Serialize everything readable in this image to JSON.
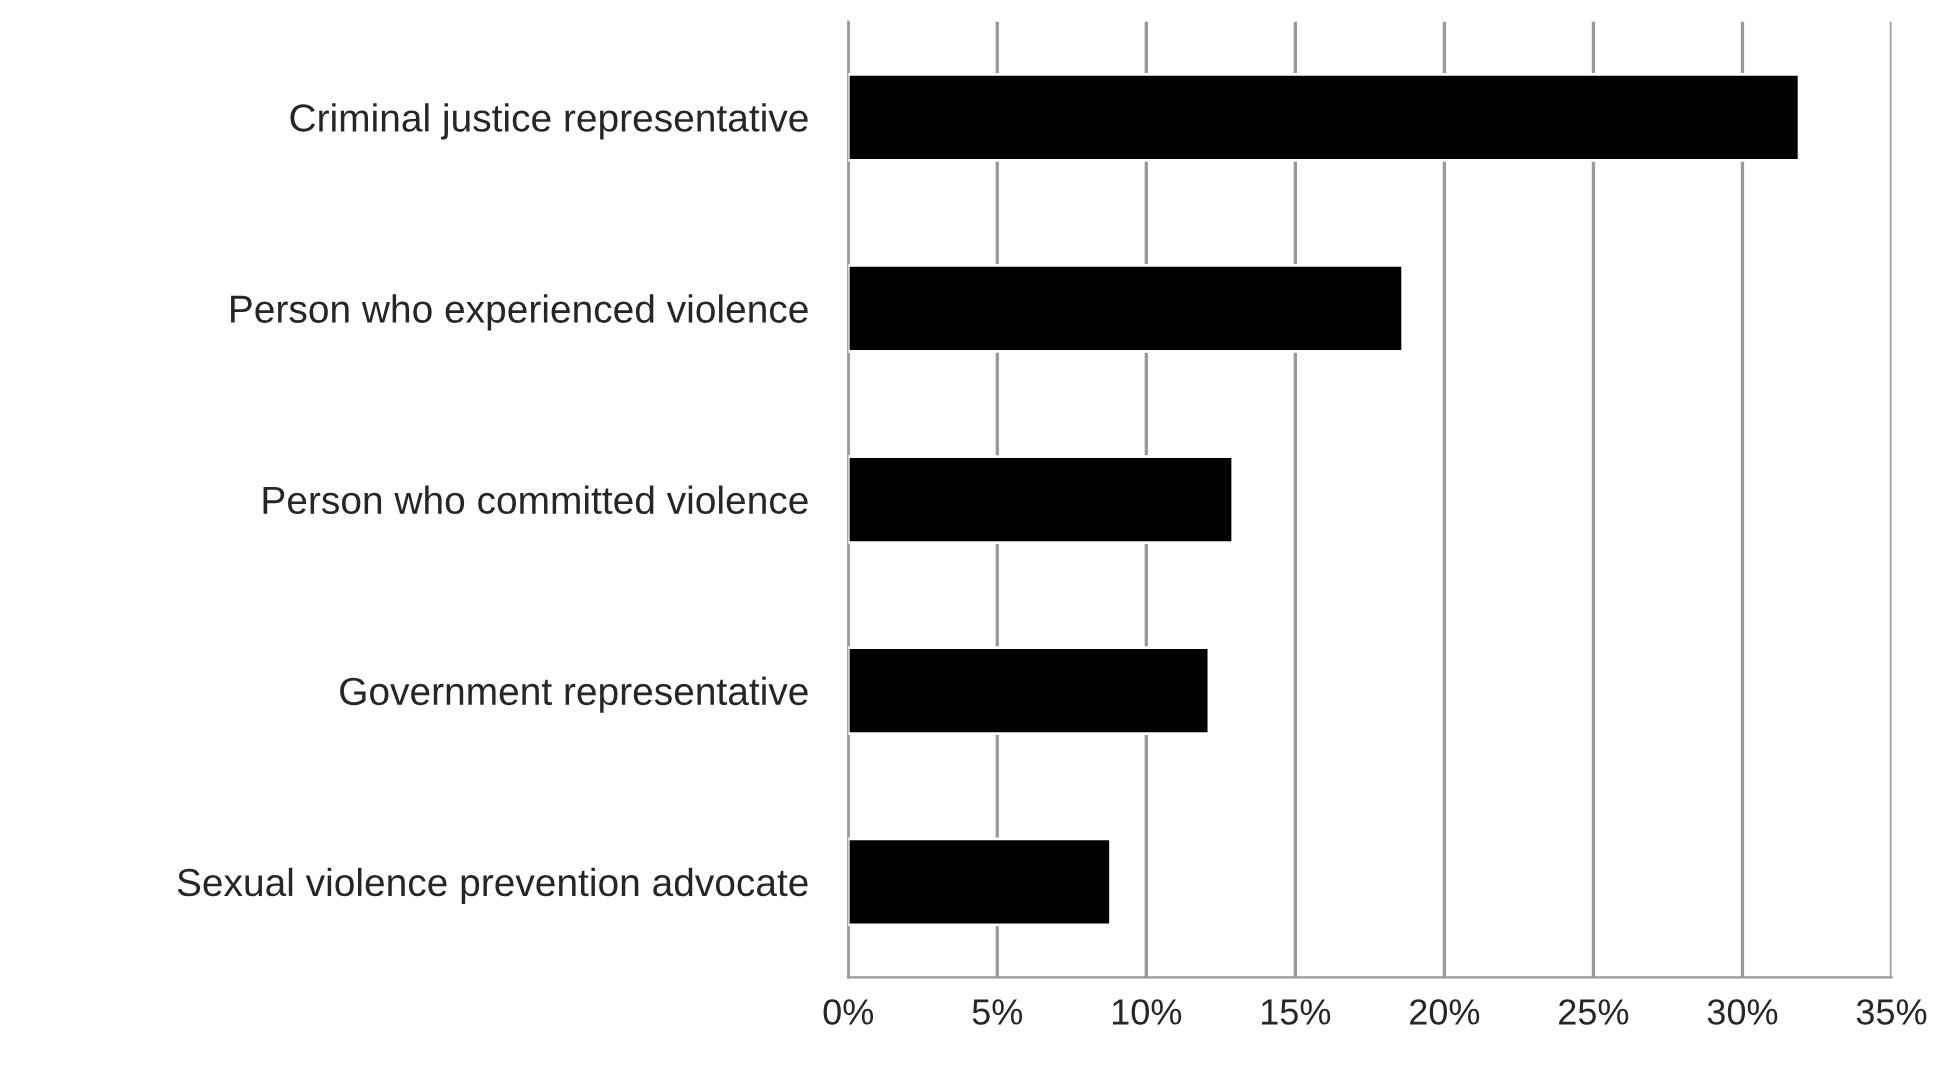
{
  "chart_data": {
    "type": "bar",
    "orientation": "horizontal",
    "categories": [
      "Criminal justice representative",
      "Person who experienced violence",
      "Person who committed violence",
      "Government representative",
      "Sexual violence prevention advocate"
    ],
    "values": [
      31.9,
      18.6,
      12.9,
      12.1,
      8.8
    ],
    "color": "#000000",
    "xlim": [
      0,
      35
    ],
    "xticks": [
      {
        "value": 0,
        "label": "0%"
      },
      {
        "value": 5,
        "label": "5%"
      },
      {
        "value": 10,
        "label": "10%"
      },
      {
        "value": 15,
        "label": "15%"
      },
      {
        "value": 20,
        "label": "20%"
      },
      {
        "value": 25,
        "label": "25%"
      },
      {
        "value": 30,
        "label": "30%"
      },
      {
        "value": 35,
        "label": "35%"
      }
    ],
    "grid": "x"
  }
}
